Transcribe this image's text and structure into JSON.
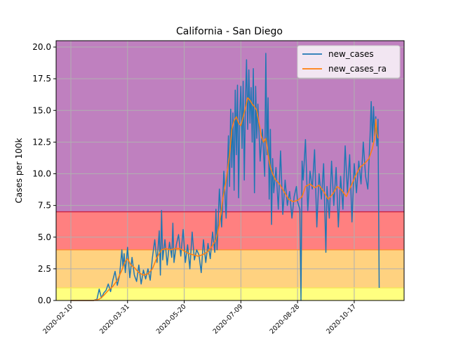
{
  "chart_data": {
    "type": "line",
    "title": "California - San Diego",
    "xlabel": "",
    "ylabel": "Cases per 100k",
    "x_start": "2020-01-28",
    "x_end": "2020-11-30",
    "ylim": [
      0,
      20.5
    ],
    "yticks": [
      "0.0",
      "2.5",
      "5.0",
      "7.5",
      "10.0",
      "12.5",
      "15.0",
      "17.5",
      "20.0"
    ],
    "xticks": [
      "2020-02-10",
      "2020-03-31",
      "2020-05-20",
      "2020-07-09",
      "2020-08-28",
      "2020-10-17"
    ],
    "grid": true,
    "legend_position": "top-right",
    "bands": [
      {
        "from": 0,
        "to": 1,
        "color": "#ffff80"
      },
      {
        "from": 1,
        "to": 4,
        "color": "#ffd280"
      },
      {
        "from": 4,
        "to": 7,
        "color": "#ff8080"
      },
      {
        "from": 7,
        "to": 20.5,
        "color": "#bf80bf"
      }
    ],
    "band_lines": [
      {
        "y": 1,
        "color": "#f7e45a"
      },
      {
        "y": 4,
        "color": "#ff8c3c"
      },
      {
        "y": 7,
        "color": "#cc2848"
      }
    ],
    "series": [
      {
        "name": "new_cases",
        "color": "#1f77b4",
        "points": [
          [
            "2020-02-10",
            0
          ],
          [
            "2020-03-01",
            0
          ],
          [
            "2020-03-04",
            0.1
          ],
          [
            "2020-03-06",
            0.9
          ],
          [
            "2020-03-08",
            0.2
          ],
          [
            "2020-03-10",
            0.6
          ],
          [
            "2020-03-12",
            0.8
          ],
          [
            "2020-03-14",
            1.3
          ],
          [
            "2020-03-16",
            0.7
          ],
          [
            "2020-03-18",
            1.6
          ],
          [
            "2020-03-20",
            2.3
          ],
          [
            "2020-03-22",
            1.2
          ],
          [
            "2020-03-24",
            2.0
          ],
          [
            "2020-03-26",
            4.0
          ],
          [
            "2020-03-27",
            2.6
          ],
          [
            "2020-03-28",
            3.7
          ],
          [
            "2020-03-29",
            2.2
          ],
          [
            "2020-03-31",
            4.2
          ],
          [
            "2020-04-02",
            1.8
          ],
          [
            "2020-04-04",
            3.4
          ],
          [
            "2020-04-06",
            2.0
          ],
          [
            "2020-04-08",
            1.5
          ],
          [
            "2020-04-10",
            2.8
          ],
          [
            "2020-04-12",
            1.3
          ],
          [
            "2020-04-14",
            2.4
          ],
          [
            "2020-04-16",
            1.7
          ],
          [
            "2020-04-18",
            2.5
          ],
          [
            "2020-04-20",
            1.6
          ],
          [
            "2020-04-22",
            3.4
          ],
          [
            "2020-04-24",
            4.8
          ],
          [
            "2020-04-26",
            3.0
          ],
          [
            "2020-04-28",
            5.5
          ],
          [
            "2020-04-29",
            2.0
          ],
          [
            "2020-04-30",
            7.1
          ],
          [
            "2020-05-01",
            3.2
          ],
          [
            "2020-05-03",
            4.8
          ],
          [
            "2020-05-05",
            2.8
          ],
          [
            "2020-05-07",
            4.6
          ],
          [
            "2020-05-09",
            3.4
          ],
          [
            "2020-05-10",
            6.1
          ],
          [
            "2020-05-11",
            3.0
          ],
          [
            "2020-05-13",
            4.4
          ],
          [
            "2020-05-15",
            5.2
          ],
          [
            "2020-05-17",
            3.5
          ],
          [
            "2020-05-19",
            5.6
          ],
          [
            "2020-05-21",
            3.0
          ],
          [
            "2020-05-23",
            4.4
          ],
          [
            "2020-05-25",
            2.5
          ],
          [
            "2020-05-27",
            5.4
          ],
          [
            "2020-05-29",
            3.2
          ],
          [
            "2020-05-31",
            4.0
          ],
          [
            "2020-06-02",
            3.6
          ],
          [
            "2020-06-04",
            2.2
          ],
          [
            "2020-06-06",
            4.8
          ],
          [
            "2020-06-08",
            3.0
          ],
          [
            "2020-06-10",
            4.5
          ],
          [
            "2020-06-12",
            3.3
          ],
          [
            "2020-06-14",
            5.4
          ],
          [
            "2020-06-16",
            3.8
          ],
          [
            "2020-06-17",
            7.2
          ],
          [
            "2020-06-18",
            4.0
          ],
          [
            "2020-06-20",
            8.8
          ],
          [
            "2020-06-22",
            5.8
          ],
          [
            "2020-06-24",
            10.2
          ],
          [
            "2020-06-26",
            6.5
          ],
          [
            "2020-06-28",
            13.0
          ],
          [
            "2020-06-29",
            9.0
          ],
          [
            "2020-06-30",
            15.1
          ],
          [
            "2020-07-01",
            10.5
          ],
          [
            "2020-07-02",
            14.8
          ],
          [
            "2020-07-03",
            8.7
          ],
          [
            "2020-07-04",
            16.6
          ],
          [
            "2020-07-05",
            11.5
          ],
          [
            "2020-07-06",
            17.0
          ],
          [
            "2020-07-07",
            8.1
          ],
          [
            "2020-07-08",
            14.7
          ],
          [
            "2020-07-09",
            16.9
          ],
          [
            "2020-07-10",
            12.0
          ],
          [
            "2020-07-11",
            17.3
          ],
          [
            "2020-07-12",
            9.5
          ],
          [
            "2020-07-13",
            15.5
          ],
          [
            "2020-07-14",
            19.0
          ],
          [
            "2020-07-15",
            13.5
          ],
          [
            "2020-07-16",
            18.2
          ],
          [
            "2020-07-17",
            14.0
          ],
          [
            "2020-07-18",
            16.8
          ],
          [
            "2020-07-19",
            12.5
          ],
          [
            "2020-07-20",
            18.3
          ],
          [
            "2020-07-21",
            8.5
          ],
          [
            "2020-07-22",
            16.9
          ],
          [
            "2020-07-23",
            12.8
          ],
          [
            "2020-07-24",
            15.5
          ],
          [
            "2020-07-26",
            11.0
          ],
          [
            "2020-07-28",
            13.5
          ],
          [
            "2020-07-30",
            9.8
          ],
          [
            "2020-07-31",
            19.5
          ],
          [
            "2020-08-01",
            11.5
          ],
          [
            "2020-08-02",
            16.0
          ],
          [
            "2020-08-03",
            8.0
          ],
          [
            "2020-08-04",
            13.5
          ],
          [
            "2020-08-05",
            6.0
          ],
          [
            "2020-08-06",
            11.2
          ],
          [
            "2020-08-07",
            8.5
          ],
          [
            "2020-08-09",
            10.5
          ],
          [
            "2020-08-11",
            7.2
          ],
          [
            "2020-08-13",
            11.8
          ],
          [
            "2020-08-15",
            6.8
          ],
          [
            "2020-08-17",
            9.5
          ],
          [
            "2020-08-19",
            7.5
          ],
          [
            "2020-08-21",
            8.6
          ],
          [
            "2020-08-23",
            6.5
          ],
          [
            "2020-08-25",
            8.2
          ],
          [
            "2020-08-27",
            9.0
          ],
          [
            "2020-08-28",
            7.8
          ],
          [
            "2020-08-30",
            7.2
          ],
          [
            "2020-08-31",
            0.0
          ],
          [
            "2020-09-01",
            11.0
          ],
          [
            "2020-09-02",
            9.5
          ],
          [
            "2020-09-04",
            12.7
          ],
          [
            "2020-09-06",
            7.1
          ],
          [
            "2020-09-08",
            10.2
          ],
          [
            "2020-09-10",
            8.8
          ],
          [
            "2020-09-12",
            11.9
          ],
          [
            "2020-09-14",
            5.8
          ],
          [
            "2020-09-16",
            10.0
          ],
          [
            "2020-09-18",
            8.0
          ],
          [
            "2020-09-20",
            10.8
          ],
          [
            "2020-09-22",
            3.8
          ],
          [
            "2020-09-23",
            9.0
          ],
          [
            "2020-09-25",
            6.5
          ],
          [
            "2020-09-27",
            11.0
          ],
          [
            "2020-09-29",
            7.5
          ],
          [
            "2020-10-01",
            10.5
          ],
          [
            "2020-10-03",
            5.8
          ],
          [
            "2020-10-05",
            9.8
          ],
          [
            "2020-10-07",
            7.2
          ],
          [
            "2020-10-09",
            12.2
          ],
          [
            "2020-10-11",
            8.5
          ],
          [
            "2020-10-13",
            11.5
          ],
          [
            "2020-10-15",
            6.2
          ],
          [
            "2020-10-17",
            10.8
          ],
          [
            "2020-10-19",
            8.5
          ],
          [
            "2020-10-21",
            11.0
          ],
          [
            "2020-10-23",
            9.2
          ],
          [
            "2020-10-25",
            12.5
          ],
          [
            "2020-10-27",
            9.8
          ],
          [
            "2020-10-29",
            8.8
          ],
          [
            "2020-10-31",
            13.0
          ],
          [
            "2020-11-01",
            15.7
          ],
          [
            "2020-11-02",
            12.5
          ],
          [
            "2020-11-03",
            15.3
          ],
          [
            "2020-11-04",
            13.0
          ],
          [
            "2020-11-05",
            14.5
          ],
          [
            "2020-11-06",
            12.2
          ],
          [
            "2020-11-07",
            14.3
          ],
          [
            "2020-11-08",
            1.0
          ]
        ]
      },
      {
        "name": "new_cases_ra",
        "color": "#ff7f0e",
        "points": [
          [
            "2020-02-10",
            0
          ],
          [
            "2020-03-01",
            0
          ],
          [
            "2020-03-06",
            0.1
          ],
          [
            "2020-03-10",
            0.4
          ],
          [
            "2020-03-14",
            0.8
          ],
          [
            "2020-03-18",
            1.1
          ],
          [
            "2020-03-22",
            1.6
          ],
          [
            "2020-03-26",
            2.4
          ],
          [
            "2020-03-29",
            3.1
          ],
          [
            "2020-03-31",
            3.3
          ],
          [
            "2020-04-03",
            2.8
          ],
          [
            "2020-04-06",
            2.6
          ],
          [
            "2020-04-10",
            2.2
          ],
          [
            "2020-04-14",
            2.0
          ],
          [
            "2020-04-18",
            2.1
          ],
          [
            "2020-04-22",
            2.5
          ],
          [
            "2020-04-26",
            3.4
          ],
          [
            "2020-04-30",
            4.0
          ],
          [
            "2020-05-04",
            4.1
          ],
          [
            "2020-05-08",
            4.0
          ],
          [
            "2020-05-12",
            4.1
          ],
          [
            "2020-05-16",
            4.1
          ],
          [
            "2020-05-20",
            3.9
          ],
          [
            "2020-05-24",
            3.7
          ],
          [
            "2020-05-28",
            3.6
          ],
          [
            "2020-06-01",
            3.5
          ],
          [
            "2020-06-05",
            3.6
          ],
          [
            "2020-06-09",
            3.8
          ],
          [
            "2020-06-13",
            4.2
          ],
          [
            "2020-06-17",
            4.8
          ],
          [
            "2020-06-20",
            6.0
          ],
          [
            "2020-06-23",
            8.0
          ],
          [
            "2020-06-26",
            9.5
          ],
          [
            "2020-06-29",
            11.5
          ],
          [
            "2020-07-01",
            13.5
          ],
          [
            "2020-07-03",
            14.2
          ],
          [
            "2020-07-05",
            14.5
          ],
          [
            "2020-07-07",
            14.0
          ],
          [
            "2020-07-09",
            13.8
          ],
          [
            "2020-07-11",
            14.5
          ],
          [
            "2020-07-13",
            15.2
          ],
          [
            "2020-07-15",
            16.0
          ],
          [
            "2020-07-17",
            15.8
          ],
          [
            "2020-07-19",
            15.5
          ],
          [
            "2020-07-21",
            15.3
          ],
          [
            "2020-07-23",
            15.0
          ],
          [
            "2020-07-25",
            14.0
          ],
          [
            "2020-07-27",
            13.0
          ],
          [
            "2020-07-29",
            12.5
          ],
          [
            "2020-07-31",
            12.8
          ],
          [
            "2020-08-02",
            11.5
          ],
          [
            "2020-08-04",
            10.5
          ],
          [
            "2020-08-06",
            10.0
          ],
          [
            "2020-08-08",
            9.6
          ],
          [
            "2020-08-12",
            9.2
          ],
          [
            "2020-08-16",
            8.6
          ],
          [
            "2020-08-20",
            8.0
          ],
          [
            "2020-08-24",
            7.8
          ],
          [
            "2020-08-28",
            7.9
          ],
          [
            "2020-09-01",
            8.2
          ],
          [
            "2020-09-04",
            9.0
          ],
          [
            "2020-09-08",
            9.2
          ],
          [
            "2020-09-12",
            8.9
          ],
          [
            "2020-09-16",
            9.1
          ],
          [
            "2020-09-20",
            8.6
          ],
          [
            "2020-09-24",
            8.0
          ],
          [
            "2020-09-28",
            8.4
          ],
          [
            "2020-10-02",
            9.0
          ],
          [
            "2020-10-06",
            8.7
          ],
          [
            "2020-10-10",
            8.2
          ],
          [
            "2020-10-14",
            9.0
          ],
          [
            "2020-10-18",
            9.8
          ],
          [
            "2020-10-22",
            10.5
          ],
          [
            "2020-10-26",
            10.8
          ],
          [
            "2020-10-30",
            11.2
          ],
          [
            "2020-11-02",
            12.0
          ],
          [
            "2020-11-04",
            12.8
          ],
          [
            "2020-11-05",
            14.3
          ],
          [
            "2020-11-06",
            13.2
          ],
          [
            "2020-11-07",
            12.8
          ]
        ]
      }
    ]
  }
}
